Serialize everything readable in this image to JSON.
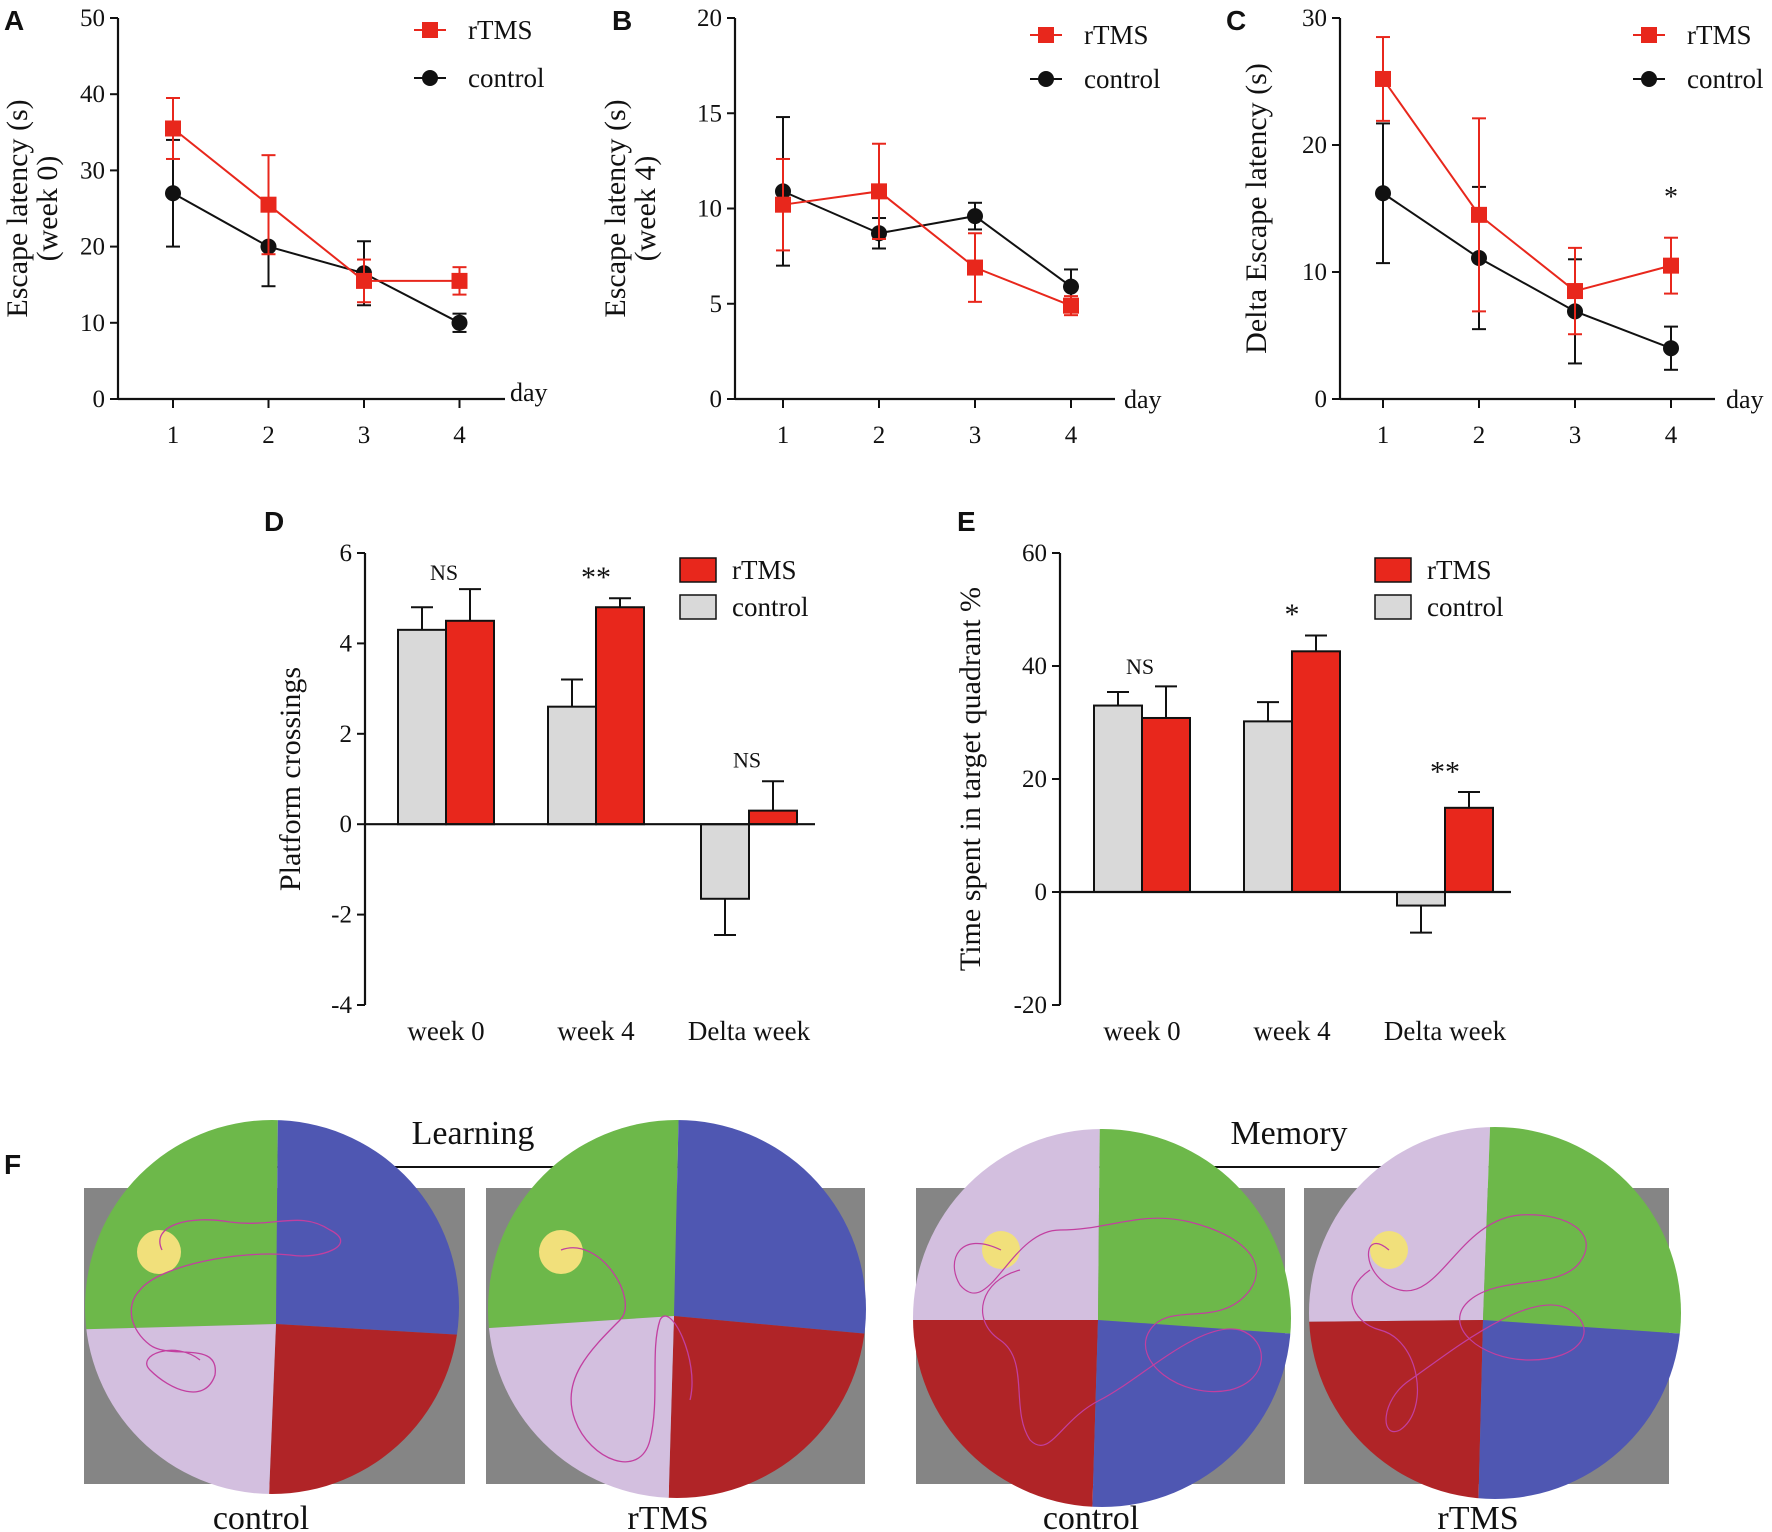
{
  "colors": {
    "rtms": "#e8271c",
    "control": "#111111",
    "control_bar": "#d9d9d9",
    "pool_background": "#858585",
    "quadrant_green": "#6db84a",
    "quadrant_blue": "#4f57b2",
    "quadrant_red": "#b02427",
    "quadrant_lavender": "#d3bfdf",
    "platform": "#f1e07b",
    "path": "#c23fa0"
  },
  "chart_data": [
    {
      "panel": "A",
      "type": "line",
      "ylabel_lines": [
        "Escape latency (s)",
        "(week 0)"
      ],
      "xlabel": "day",
      "x": [
        "1",
        "2",
        "3",
        "4"
      ],
      "ylim": [
        0,
        50
      ],
      "yticks": [
        "0",
        "10",
        "20",
        "30",
        "40",
        "50"
      ],
      "series": [
        {
          "name": "rTMS",
          "key": "rtms",
          "values": [
            35.5,
            25.5,
            15.5,
            15.5
          ],
          "errors": [
            4.0,
            6.5,
            2.8,
            1.8
          ]
        },
        {
          "name": "control",
          "key": "control",
          "values": [
            27.0,
            20.0,
            16.5,
            10.0
          ],
          "errors": [
            7.0,
            5.2,
            4.2,
            1.2
          ]
        }
      ],
      "annotations": []
    },
    {
      "panel": "B",
      "type": "line",
      "ylabel_lines": [
        "Escape latency (s)",
        "(week 4)"
      ],
      "xlabel": "day",
      "x": [
        "1",
        "2",
        "3",
        "4"
      ],
      "ylim": [
        0,
        20
      ],
      "yticks": [
        "0",
        "5",
        "10",
        "15",
        "20"
      ],
      "series": [
        {
          "name": "rTMS",
          "key": "rtms",
          "values": [
            10.2,
            10.9,
            6.9,
            4.9
          ],
          "errors": [
            2.4,
            2.5,
            1.8,
            0.5
          ]
        },
        {
          "name": "control",
          "key": "control",
          "values": [
            10.9,
            8.7,
            9.6,
            5.9
          ],
          "errors": [
            3.9,
            0.8,
            0.7,
            0.9
          ]
        }
      ],
      "annotations": []
    },
    {
      "panel": "C",
      "type": "line",
      "ylabel_lines": [
        "Delta Escape latency (s)"
      ],
      "xlabel": "day",
      "x": [
        "1",
        "2",
        "3",
        "4"
      ],
      "ylim": [
        0,
        30
      ],
      "yticks": [
        "0",
        "10",
        "20",
        "30"
      ],
      "series": [
        {
          "name": "rTMS",
          "key": "rtms",
          "values": [
            25.2,
            14.5,
            8.5,
            10.5
          ],
          "errors": [
            3.3,
            7.6,
            3.4,
            2.2
          ]
        },
        {
          "name": "control",
          "key": "control",
          "values": [
            16.2,
            11.1,
            6.9,
            4.0
          ],
          "errors": [
            5.5,
            5.6,
            4.1,
            1.7
          ]
        }
      ],
      "annotations": [
        {
          "text": "*",
          "category": "4",
          "y": 15.2
        }
      ]
    },
    {
      "panel": "D",
      "type": "bar",
      "ylabel": "Platform crossings",
      "categories": [
        "week 0",
        "week 4",
        "Delta week"
      ],
      "ylim": [
        -4,
        6
      ],
      "yticks": [
        "-4",
        "-2",
        "0",
        "2",
        "4",
        "6"
      ],
      "series": [
        {
          "name": "rTMS",
          "key": "rtms",
          "values": [
            4.5,
            4.8,
            0.3
          ],
          "errors": [
            0.7,
            0.2,
            0.65
          ]
        },
        {
          "name": "control",
          "key": "control",
          "values": [
            4.3,
            2.6,
            -1.65
          ],
          "errors": [
            0.5,
            0.6,
            0.8
          ]
        }
      ],
      "annotations": [
        {
          "text": "NS",
          "category": "week 0",
          "y": 5.4
        },
        {
          "text": "**",
          "category": "week 4",
          "y": 5.25
        },
        {
          "text": "NS",
          "category": "Delta week",
          "y": 1.25
        }
      ]
    },
    {
      "panel": "E",
      "type": "bar",
      "ylabel": "Time spent in target quadrant %",
      "categories": [
        "week 0",
        "week 4",
        "Delta week"
      ],
      "ylim": [
        -20,
        60
      ],
      "yticks": [
        "-20",
        "0",
        "20",
        "40",
        "60"
      ],
      "series": [
        {
          "name": "rTMS",
          "key": "rtms",
          "values": [
            30.8,
            42.6,
            14.9
          ],
          "errors": [
            5.6,
            2.8,
            2.8
          ]
        },
        {
          "name": "control",
          "key": "control",
          "values": [
            33.0,
            30.2,
            -2.4
          ],
          "errors": [
            2.4,
            3.4,
            4.8
          ]
        }
      ],
      "annotations": [
        {
          "text": "NS",
          "category": "week 0",
          "y": 38.6
        },
        {
          "text": "*",
          "category": "week 4",
          "y": 47.4
        },
        {
          "text": "**",
          "category": "Delta week",
          "y": 19.6
        }
      ]
    }
  ],
  "panel_f": {
    "letter": "F",
    "groups": [
      {
        "title": "Learning",
        "captions": [
          "control",
          "rTMS"
        ]
      },
      {
        "title": "Memory",
        "captions": [
          "control",
          "rTMS"
        ]
      }
    ]
  }
}
